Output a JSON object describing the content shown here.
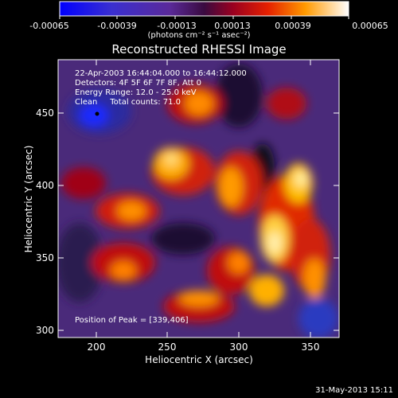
{
  "title": "Reconstructed RHESSI Image",
  "colorbar": {
    "ticks": [
      "-0.00065",
      "-0.00039",
      "-0.00013",
      "0.00013",
      "0.00039",
      "0.00065"
    ],
    "unit_label": "(photons cm⁻² s⁻¹ asec⁻²)",
    "range": [
      -0.00065,
      0.00065
    ]
  },
  "axes": {
    "xlabel": "Heliocentric X (arcsec)",
    "ylabel": "Heliocentric Y (arcsec)",
    "xticks": [
      "200",
      "250",
      "300",
      "350"
    ],
    "yticks": [
      "300",
      "350",
      "400",
      "450"
    ],
    "xrange": [
      175,
      368
    ],
    "yrange": [
      295,
      488
    ]
  },
  "info": {
    "time": "22-Apr-2003 16:44:04.000 to 16:44:12.000",
    "detectors": "Detectors: 4F 5F 6F 7F 8F, Att 0",
    "energy": "Energy Range: 12.0 - 25.0 keV",
    "clean": "Clean     Total counts: 71.0"
  },
  "peak": "Position of Peak = [339,406]",
  "footer_date": "31-May-2013 15:11"
}
